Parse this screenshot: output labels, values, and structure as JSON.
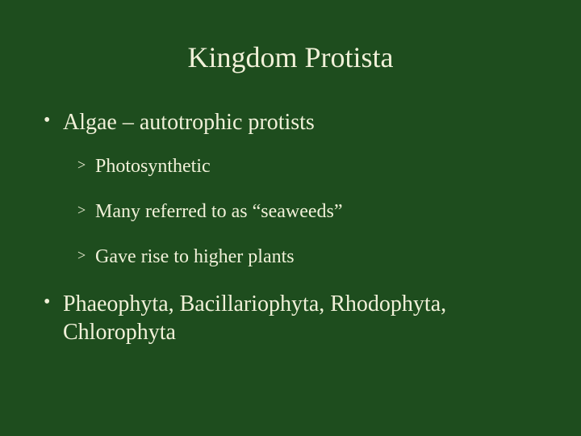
{
  "slide": {
    "background_color": "#1e4d1e",
    "text_color": "#f0f0d8",
    "font_family": "Times New Roman",
    "title": "Kingdom Protista",
    "title_fontsize": 36,
    "bullets": [
      {
        "text": "Algae – autotrophic protists",
        "fontsize": 28,
        "sub_bullets": [
          {
            "text": "Photosynthetic",
            "fontsize": 24
          },
          {
            "text": "Many referred to as “seaweeds”",
            "fontsize": 24
          },
          {
            "text": "Gave rise to higher plants",
            "fontsize": 24
          }
        ]
      },
      {
        "text": "Phaeophyta, Bacillariophyta, Rhodophyta, Chlorophyta",
        "fontsize": 28,
        "sub_bullets": []
      }
    ],
    "bullet_marker": "•",
    "sub_bullet_marker": ">"
  }
}
